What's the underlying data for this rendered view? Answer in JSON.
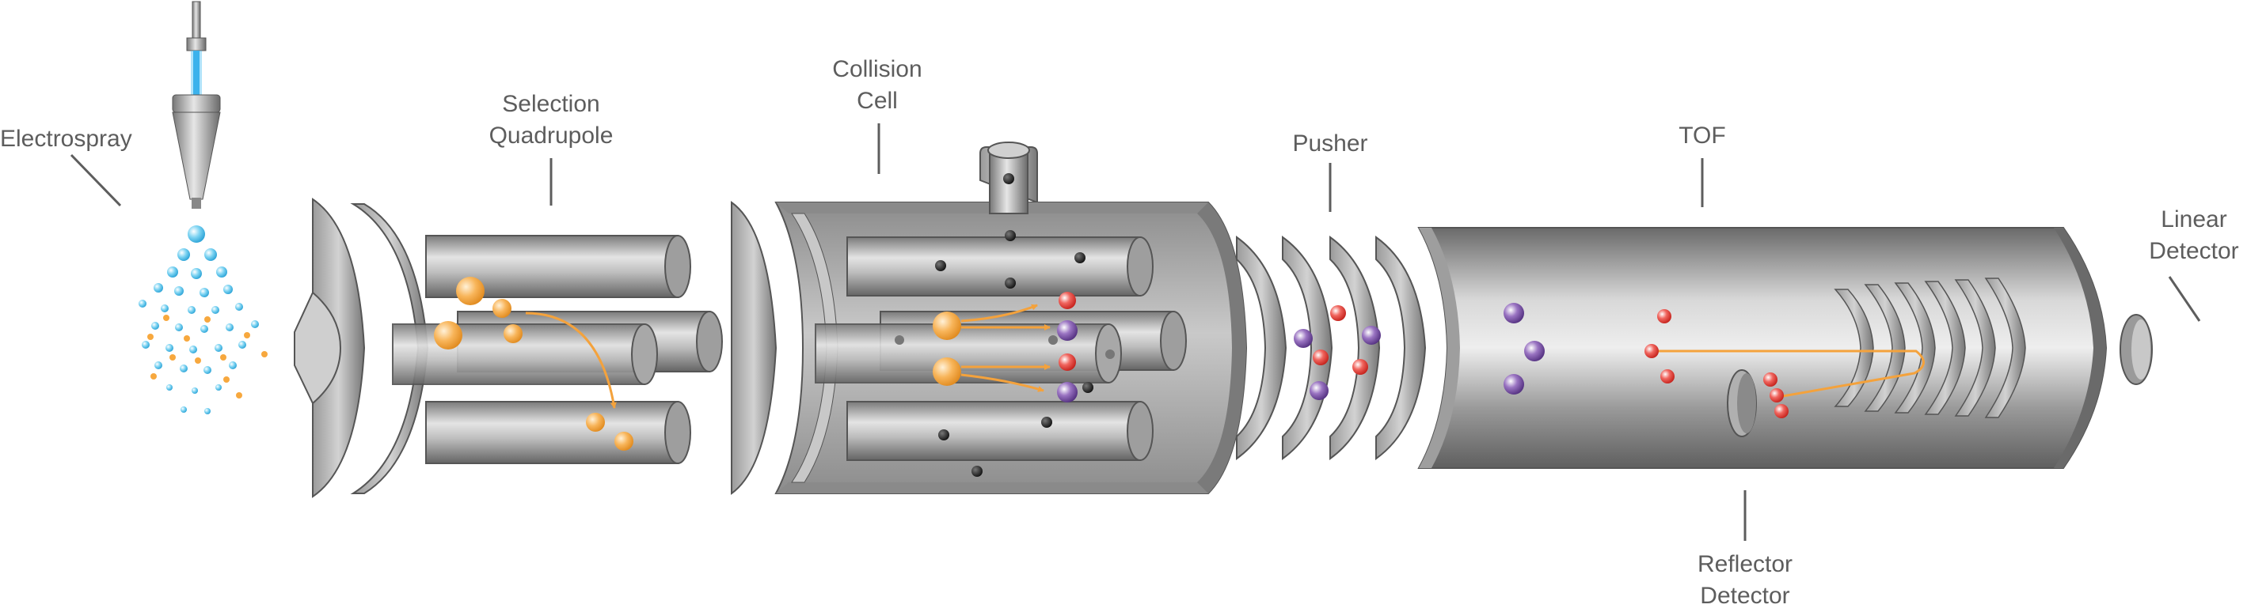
{
  "labels": {
    "electrospray": "Electrospray",
    "selection_quadrupole": [
      "Selection",
      "Quadrupole"
    ],
    "collision_cell": [
      "Collision",
      "Cell"
    ],
    "pusher": "Pusher",
    "tof": "TOF",
    "linear_detector": [
      "Linear",
      "Detector"
    ],
    "reflector_detector": [
      "Reflector",
      "Detector"
    ]
  },
  "colors": {
    "label_text": "#5d5d5d",
    "leader_line": "#5d5d5d",
    "metal_dark": "#6e6e6e",
    "metal_light": "#d9d9d9",
    "droplet": "#5bc3ea",
    "ion_orange": "#f7a83e",
    "ion_red": "#e8413a",
    "ion_purple": "#7b4fa0",
    "neutral_black": "#1a1a1a",
    "ion_path": "#f4a23c",
    "spray_beam": "#1e9ee0"
  }
}
